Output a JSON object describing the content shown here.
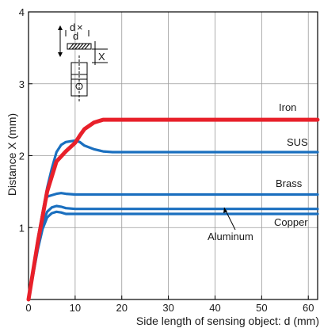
{
  "chart_data": {
    "type": "line",
    "xlabel": "Side length of sensing object: d (mm)",
    "ylabel": "Distance X (mm)",
    "xlim": [
      0,
      62
    ],
    "ylim": [
      0,
      4
    ],
    "xticks": [
      0,
      10,
      20,
      30,
      40,
      50,
      60
    ],
    "yticks": [
      1,
      2,
      3,
      4
    ],
    "grid": true,
    "colors": {
      "iron": "#e8202a",
      "others": "#1a6fbf",
      "grid": "#9a9a9a",
      "axis": "#000000"
    },
    "series": [
      {
        "name": "Iron",
        "color": "#e8202a",
        "x": [
          0,
          2,
          4,
          6,
          8,
          10,
          11,
          12,
          14,
          16,
          18,
          20,
          30,
          40,
          50,
          62
        ],
        "y": [
          0,
          0.8,
          1.5,
          1.92,
          2.06,
          2.18,
          2.28,
          2.37,
          2.46,
          2.5,
          2.5,
          2.5,
          2.5,
          2.5,
          2.5,
          2.5
        ]
      },
      {
        "name": "SUS",
        "color": "#1a6fbf",
        "x": [
          0,
          2,
          4,
          5,
          6,
          7,
          8,
          9,
          10,
          11,
          12,
          14,
          16,
          18,
          20,
          30,
          40,
          50,
          62
        ],
        "y": [
          0,
          0.85,
          1.55,
          1.82,
          2.05,
          2.15,
          2.19,
          2.2,
          2.21,
          2.19,
          2.14,
          2.09,
          2.06,
          2.05,
          2.05,
          2.05,
          2.05,
          2.05,
          2.05
        ]
      },
      {
        "name": "Brass",
        "color": "#1a6fbf",
        "x": [
          0,
          2,
          3,
          4,
          5,
          6,
          7,
          8,
          10,
          20,
          30,
          40,
          50,
          62
        ],
        "y": [
          0,
          0.82,
          1.2,
          1.43,
          1.45,
          1.47,
          1.48,
          1.47,
          1.46,
          1.46,
          1.46,
          1.46,
          1.46,
          1.46
        ]
      },
      {
        "name": "Aluminum",
        "color": "#1a6fbf",
        "x": [
          0,
          2,
          3,
          4,
          5,
          6,
          7,
          8,
          10,
          20,
          30,
          40,
          50,
          62
        ],
        "y": [
          0,
          0.75,
          1.05,
          1.22,
          1.28,
          1.3,
          1.29,
          1.27,
          1.26,
          1.26,
          1.26,
          1.26,
          1.26,
          1.26
        ]
      },
      {
        "name": "Copper",
        "color": "#1a6fbf",
        "x": [
          0,
          2,
          3,
          4,
          5,
          6,
          7,
          8,
          10,
          20,
          30,
          40,
          50,
          62
        ],
        "y": [
          0,
          0.7,
          0.98,
          1.14,
          1.2,
          1.22,
          1.21,
          1.19,
          1.19,
          1.19,
          1.19,
          1.19,
          1.19,
          1.19
        ]
      }
    ],
    "series_labels": {
      "iron": "Iron",
      "sus": "SUS",
      "brass": "Brass",
      "copper": "Copper",
      "aluminum": "Aluminum"
    },
    "inset_labels": {
      "d": "d",
      "times": "×",
      "d2": "d",
      "x": "X"
    }
  }
}
